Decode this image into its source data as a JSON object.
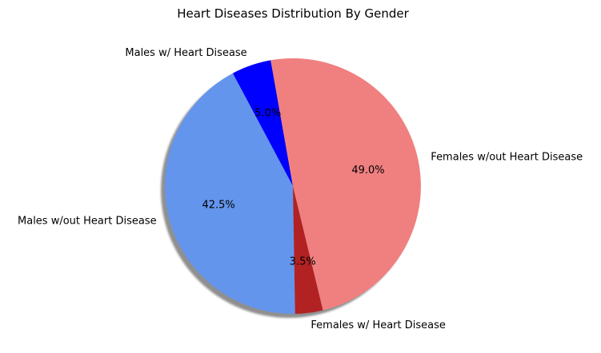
{
  "chart_data": {
    "type": "pie",
    "title": "Heart Diseases Distribution By Gender",
    "slices": [
      {
        "label": "Males w/ Heart Disease",
        "value": 5.0,
        "pct_label": "5.0%",
        "color": "#0000ff"
      },
      {
        "label": "Males w/out Heart Disease",
        "value": 42.5,
        "pct_label": "42.5%",
        "color": "#6495ed"
      },
      {
        "label": "Females w/ Heart Disease",
        "value": 3.5,
        "pct_label": "3.5%",
        "color": "#b22222"
      },
      {
        "label": "Females w/out Heart Disease",
        "value": 49.0,
        "pct_label": "49.0%",
        "color": "#f08080"
      }
    ],
    "start_angle_deg": 100,
    "direction": "counterclockwise",
    "shadow": true,
    "legend": "none"
  }
}
